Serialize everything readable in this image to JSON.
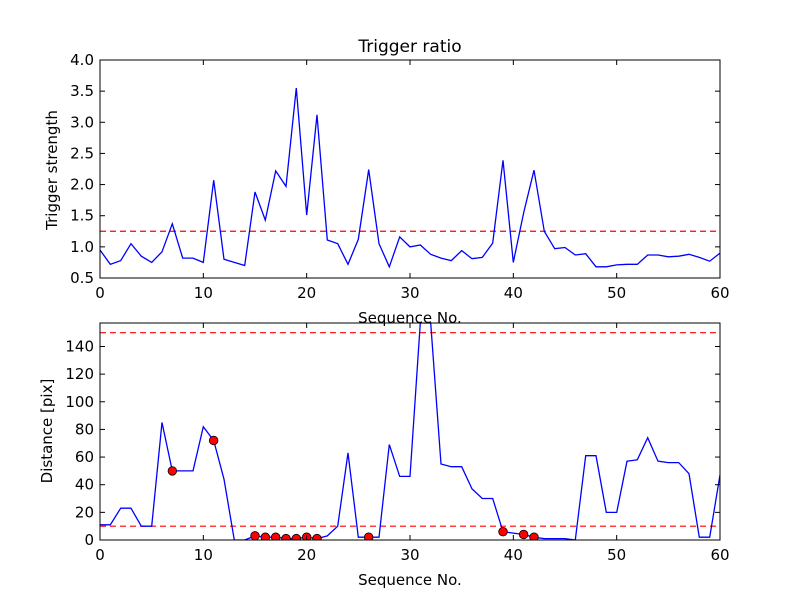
{
  "chart_data": [
    {
      "type": "line",
      "title": "Trigger ratio",
      "xlabel": "Sequence No.",
      "ylabel": "Trigger strength",
      "xlim": [
        0,
        60
      ],
      "ylim": [
        0.5,
        4.0
      ],
      "grid": false,
      "x_ticks": [
        "0",
        "10",
        "20",
        "30",
        "40",
        "50",
        "60"
      ],
      "y_ticks": [
        "0.5",
        "1.0",
        "1.5",
        "2.0",
        "2.5",
        "3.0",
        "3.5",
        "4.0"
      ],
      "series": [
        {
          "color": "#0000ff",
          "x": [
            0,
            1,
            2,
            3,
            4,
            5,
            6,
            7,
            8,
            9,
            10,
            11,
            12,
            13,
            14,
            15,
            16,
            17,
            18,
            19,
            20,
            21,
            22,
            23,
            24,
            25,
            26,
            27,
            28,
            29,
            30,
            31,
            32,
            33,
            34,
            35,
            36,
            37,
            38,
            39,
            40,
            41,
            42,
            43,
            44,
            45,
            46,
            47,
            48,
            49,
            50,
            51,
            52,
            53,
            54,
            55,
            56,
            57,
            58,
            59,
            60
          ],
          "values": [
            0.95,
            0.72,
            0.78,
            1.05,
            0.85,
            0.75,
            0.92,
            1.37,
            0.82,
            0.82,
            0.75,
            2.07,
            0.8,
            0.75,
            0.7,
            1.88,
            1.43,
            2.22,
            1.97,
            3.55,
            1.51,
            3.12,
            1.11,
            1.05,
            0.72,
            1.12,
            2.24,
            1.05,
            0.68,
            1.16,
            1.0,
            1.03,
            0.88,
            0.82,
            0.78,
            0.94,
            0.81,
            0.83,
            1.06,
            2.39,
            0.75,
            1.55,
            2.23,
            1.25,
            0.97,
            0.99,
            0.87,
            0.89,
            0.68,
            0.68,
            0.71,
            0.72,
            0.72,
            0.87,
            0.87,
            0.84,
            0.85,
            0.88,
            0.83,
            0.77,
            0.9
          ]
        }
      ],
      "hlines": [
        {
          "y": 1.25,
          "color": "#ff0000",
          "style": "dashed"
        }
      ]
    },
    {
      "type": "line",
      "xlabel": "Sequence No.",
      "ylabel": "Distance [pix]",
      "xlim": [
        0,
        60
      ],
      "ylim": [
        0,
        157
      ],
      "grid": false,
      "x_ticks": [
        "0",
        "10",
        "20",
        "30",
        "40",
        "50",
        "60"
      ],
      "y_ticks": [
        "0",
        "20",
        "40",
        "60",
        "80",
        "100",
        "120",
        "140"
      ],
      "series": [
        {
          "color": "#0000ff",
          "x": [
            0,
            1,
            2,
            3,
            4,
            5,
            6,
            7,
            8,
            9,
            10,
            11,
            12,
            13,
            14,
            15,
            16,
            17,
            18,
            19,
            20,
            21,
            22,
            23,
            24,
            25,
            26,
            27,
            28,
            29,
            30,
            31,
            32,
            33,
            34,
            35,
            36,
            37,
            38,
            39,
            40,
            41,
            42,
            43,
            44,
            45,
            46,
            47,
            48,
            49,
            50,
            51,
            52,
            53,
            54,
            55,
            56,
            57,
            58,
            59,
            60
          ],
          "values": [
            11,
            11,
            23,
            23,
            10,
            10,
            85,
            50,
            50,
            50,
            82,
            72,
            44,
            0,
            0,
            3,
            2,
            2,
            1,
            1,
            2,
            1,
            3,
            10,
            63,
            2,
            2,
            2,
            69,
            46,
            46,
            157,
            157,
            55,
            53,
            53,
            37,
            30,
            30,
            6,
            5,
            4,
            2,
            1,
            1,
            1,
            0,
            61,
            61,
            20,
            20,
            57,
            58,
            74,
            57,
            56,
            56,
            48,
            2,
            2,
            47
          ]
        }
      ],
      "markers": {
        "color": "#ff0000",
        "x": [
          7,
          11,
          15,
          16,
          17,
          18,
          19,
          20,
          21,
          26,
          39,
          41,
          42
        ],
        "values": [
          50,
          72,
          3,
          2,
          2,
          1,
          1,
          2,
          1,
          2,
          6,
          4,
          2
        ]
      },
      "hlines": [
        {
          "y": 150,
          "color": "#ff0000",
          "style": "dashed"
        },
        {
          "y": 10,
          "color": "#ff0000",
          "style": "dashed"
        }
      ]
    }
  ]
}
